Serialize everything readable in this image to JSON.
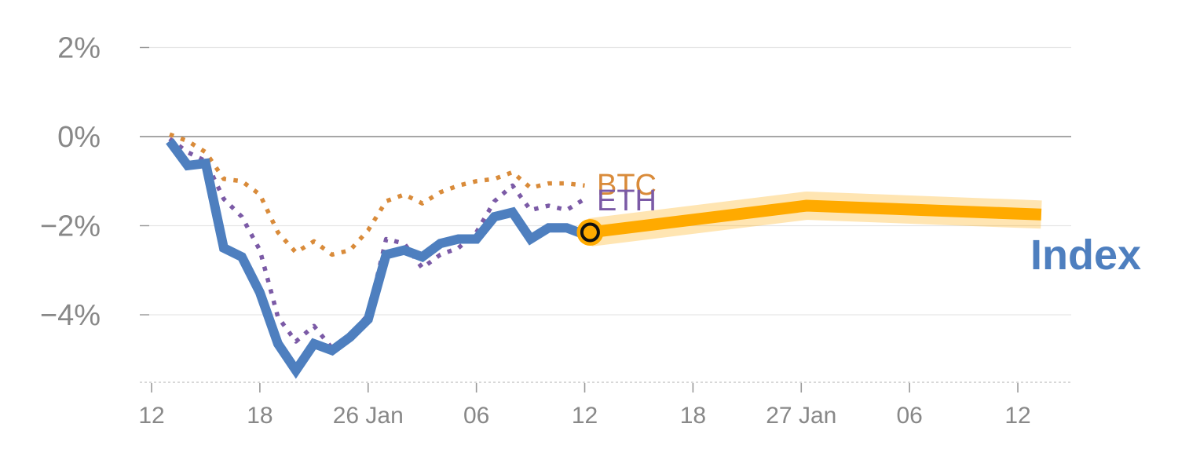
{
  "chart_data": {
    "type": "line",
    "title": "",
    "xlabel": "",
    "ylabel": "",
    "y_unit": "%",
    "ylim": [
      -5.5,
      2.5
    ],
    "y_ticks": [
      2,
      0,
      -2,
      -4
    ],
    "y_tick_labels": [
      "2%",
      "0%",
      "−2%",
      "−4%"
    ],
    "x_tick_labels": [
      "12",
      "18",
      "26 Jan",
      "06",
      "12",
      "18",
      "27 Jan",
      "06",
      "12"
    ],
    "grid": true,
    "zero_line": true,
    "colors": {
      "index": "#4e7fbf",
      "btc": "#d98b3a",
      "eth": "#7b5aa6",
      "forecast": "#ffaa00",
      "grid": "#e6e6e6",
      "zero": "#888888",
      "tick_text": "#888888"
    },
    "series": [
      {
        "name": "Index",
        "style": "solid",
        "values": [
          [
            13,
            -0.1
          ],
          [
            14,
            -0.65
          ],
          [
            15,
            -0.6
          ],
          [
            16,
            -2.5
          ],
          [
            17,
            -2.7
          ],
          [
            18,
            -3.5
          ],
          [
            19,
            -4.65
          ],
          [
            20,
            -5.25
          ],
          [
            21,
            -4.65
          ],
          [
            22,
            -4.8
          ],
          [
            23,
            -4.5
          ],
          [
            24,
            -4.1
          ],
          [
            25,
            -2.65
          ],
          [
            26,
            -2.55
          ],
          [
            27,
            -2.7
          ],
          [
            28,
            -2.4
          ],
          [
            29,
            -2.3
          ],
          [
            30,
            -2.3
          ],
          [
            31,
            -1.8
          ],
          [
            32,
            -1.7
          ],
          [
            33,
            -2.3
          ],
          [
            34,
            -2.05
          ],
          [
            35,
            -2.05
          ],
          [
            36,
            -2.2
          ]
        ]
      },
      {
        "name": "BTC",
        "style": "dotted",
        "values": [
          [
            13,
            0.05
          ],
          [
            14,
            -0.1
          ],
          [
            15,
            -0.35
          ],
          [
            16,
            -0.95
          ],
          [
            17,
            -1.0
          ],
          [
            18,
            -1.3
          ],
          [
            19,
            -2.15
          ],
          [
            20,
            -2.6
          ],
          [
            21,
            -2.35
          ],
          [
            22,
            -2.65
          ],
          [
            23,
            -2.55
          ],
          [
            24,
            -2.1
          ],
          [
            25,
            -1.45
          ],
          [
            26,
            -1.3
          ],
          [
            27,
            -1.5
          ],
          [
            28,
            -1.25
          ],
          [
            29,
            -1.1
          ],
          [
            30,
            -1.0
          ],
          [
            31,
            -0.95
          ],
          [
            32,
            -0.8
          ],
          [
            33,
            -1.15
          ],
          [
            34,
            -1.05
          ],
          [
            35,
            -1.05
          ],
          [
            36,
            -1.1
          ]
        ]
      },
      {
        "name": "ETH",
        "style": "dotted",
        "values": [
          [
            13,
            -0.05
          ],
          [
            14,
            -0.35
          ],
          [
            15,
            -0.55
          ],
          [
            16,
            -1.4
          ],
          [
            17,
            -1.8
          ],
          [
            18,
            -2.55
          ],
          [
            19,
            -4.05
          ],
          [
            20,
            -4.6
          ],
          [
            21,
            -4.25
          ],
          [
            22,
            -4.75
          ],
          [
            23,
            -4.45
          ],
          [
            24,
            -4.0
          ],
          [
            25,
            -2.3
          ],
          [
            26,
            -2.4
          ],
          [
            27,
            -2.95
          ],
          [
            28,
            -2.65
          ],
          [
            29,
            -2.5
          ],
          [
            30,
            -2.15
          ],
          [
            31,
            -1.45
          ],
          [
            32,
            -1.1
          ],
          [
            33,
            -1.65
          ],
          [
            34,
            -1.55
          ],
          [
            35,
            -1.65
          ],
          [
            36,
            -1.4
          ]
        ]
      },
      {
        "name": "forecast",
        "style": "band",
        "values": [
          [
            36.3,
            -2.15
          ],
          [
            48.3,
            -1.55
          ],
          [
            61.3,
            -1.75
          ]
        ]
      }
    ],
    "labels": {
      "btc": "BTC",
      "eth": "ETH",
      "index": "Index"
    }
  }
}
